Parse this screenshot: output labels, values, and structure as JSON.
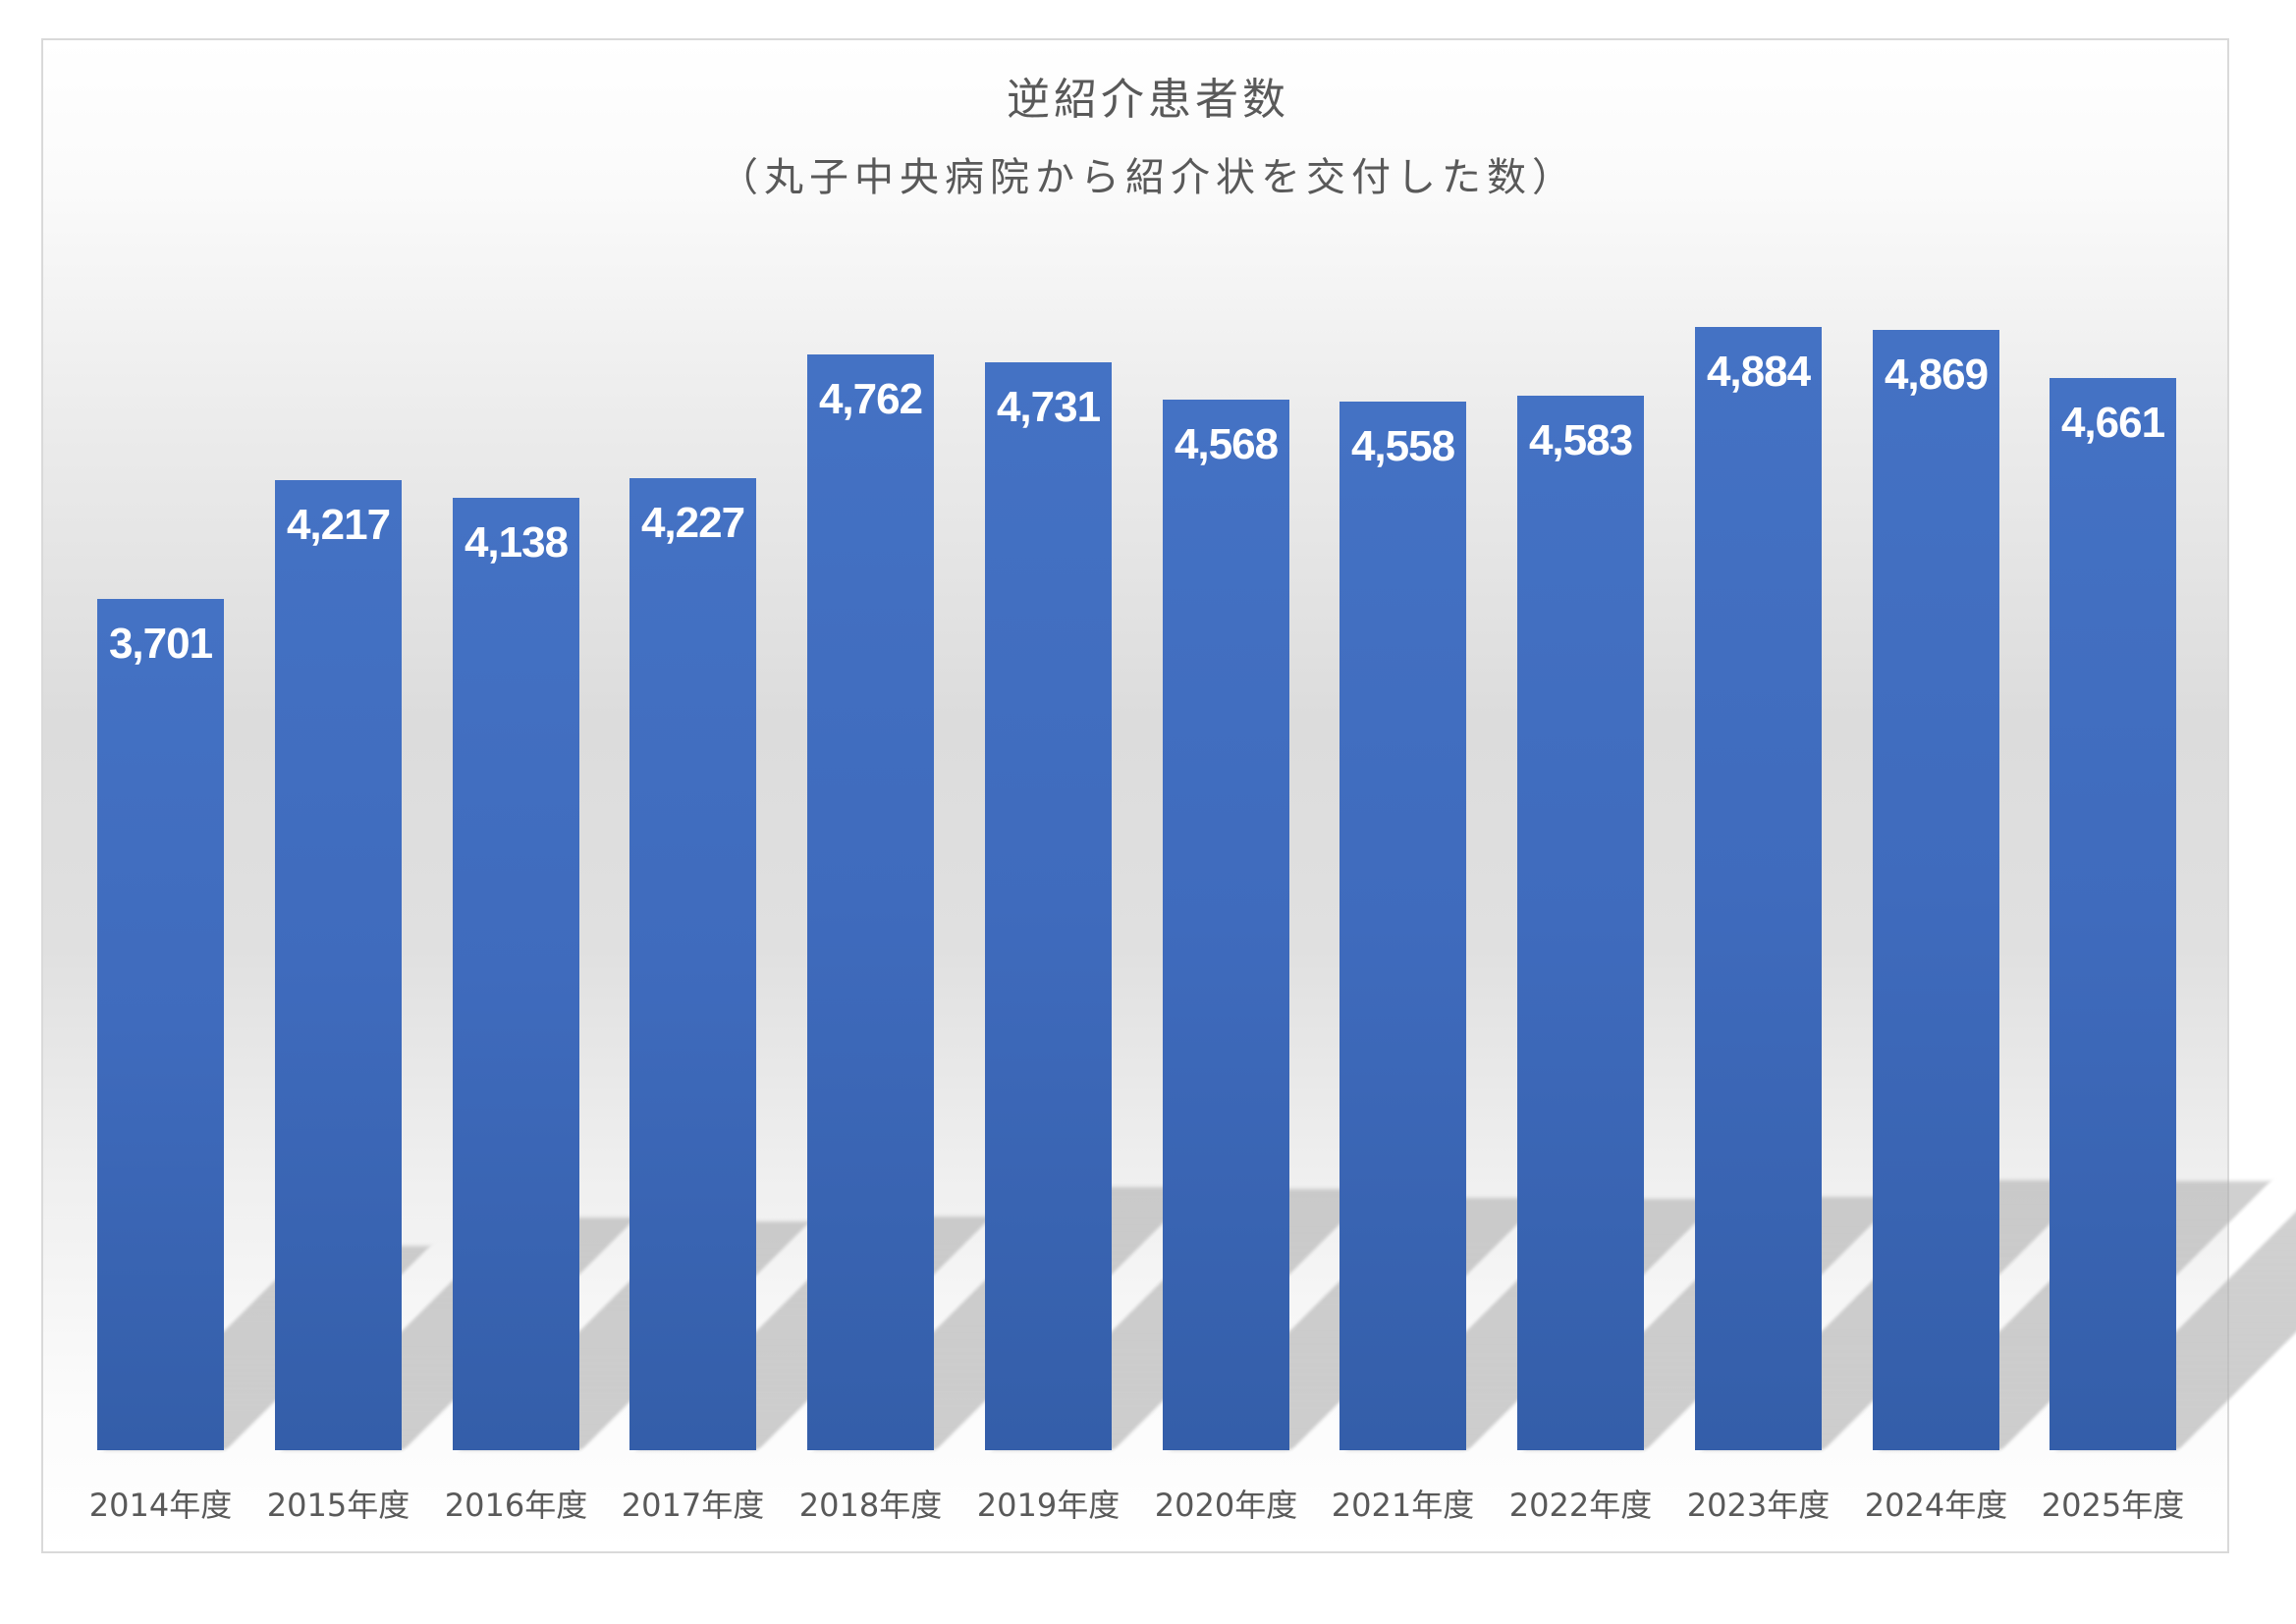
{
  "chart_data": {
    "type": "bar",
    "title": "逆紹介患者数",
    "subtitle": "（丸子中央病院から紹介状を交付した数）",
    "xlabel": "",
    "ylabel": "",
    "categories": [
      "2014年度",
      "2015年度",
      "2016年度",
      "2017年度",
      "2018年度",
      "2019年度",
      "2020年度",
      "2021年度",
      "2022年度",
      "2023年度",
      "2024年度",
      "2025年度"
    ],
    "values": [
      3701,
      4217,
      4138,
      4227,
      4762,
      4731,
      4568,
      4558,
      4583,
      4884,
      4869,
      4661
    ],
    "value_labels": [
      "3,701",
      "4,217",
      "4,138",
      "4,227",
      "4,762",
      "4,731",
      "4,568",
      "4,558",
      "4,583",
      "4,884",
      "4,869",
      "4,661"
    ],
    "ylim": [
      0,
      5200
    ],
    "grid": false,
    "legend": null,
    "colors": {
      "bar_top": "#4472c4",
      "bar_bottom": "#345ea9",
      "label_text": "#ffffff",
      "axis_text": "#595959"
    }
  }
}
